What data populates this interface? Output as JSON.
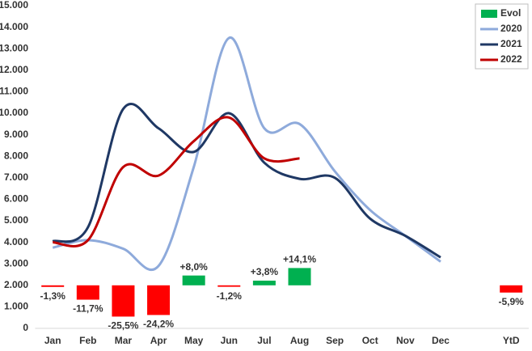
{
  "chart_data": {
    "type": "line",
    "categories": [
      "Jan",
      "Feb",
      "Mar",
      "Apr",
      "May",
      "Jun",
      "Jul",
      "Aug",
      "Sep",
      "Oct",
      "Nov",
      "Dec",
      null,
      "YtD"
    ],
    "ylim": [
      0,
      15000
    ],
    "yticks": [
      {
        "value": 0,
        "label": "0"
      },
      {
        "value": 1000,
        "label": "1.000"
      },
      {
        "value": 2000,
        "label": "2.000"
      },
      {
        "value": 3000,
        "label": "3.000"
      },
      {
        "value": 4000,
        "label": "4.000"
      },
      {
        "value": 5000,
        "label": "5.000"
      },
      {
        "value": 6000,
        "label": "6.000"
      },
      {
        "value": 7000,
        "label": "7.000"
      },
      {
        "value": 8000,
        "label": "8.000"
      },
      {
        "value": 9000,
        "label": "9.000"
      },
      {
        "value": 10000,
        "label": "10.000"
      },
      {
        "value": 11000,
        "label": "11.000"
      },
      {
        "value": 12000,
        "label": "12.000"
      },
      {
        "value": 13000,
        "label": "13.000"
      },
      {
        "value": 14000,
        "label": "14.000"
      },
      {
        "value": 15000,
        "label": "15.000"
      }
    ],
    "y2lim": [
      -35.1,
      228.1
    ],
    "legend": "upper right",
    "grid": false,
    "series": [
      {
        "name": "Evol",
        "type": "bar",
        "axis": "y2",
        "color": "#00b050",
        "negative_color": "#ff0000",
        "values": [
          -1.3,
          -11.7,
          -25.5,
          -24.2,
          8.0,
          -1.2,
          3.8,
          14.1,
          null,
          null,
          null,
          null,
          null,
          -5.9
        ],
        "value_labels": [
          "-1,3%",
          "-11,7%",
          "-25,5%",
          "-24,2%",
          "+8,0%",
          "-1,2%",
          "+3,8%",
          "+14,1%",
          null,
          null,
          null,
          null,
          null,
          "-5,9%"
        ]
      },
      {
        "name": "2020",
        "color": "#8eaadb",
        "values": [
          3750,
          4100,
          3700,
          2900,
          7500,
          13500,
          9300,
          9500,
          7300,
          5500,
          4300,
          3100,
          null,
          null
        ]
      },
      {
        "name": "2021",
        "color": "#1f3864",
        "values": [
          4050,
          4700,
          10200,
          9300,
          8200,
          10000,
          7700,
          6950,
          7000,
          5100,
          4300,
          3300,
          null,
          null
        ]
      },
      {
        "name": "2022",
        "color": "#c00000",
        "values": [
          4000,
          4100,
          7500,
          7100,
          8700,
          9800,
          7900,
          7900,
          null,
          null,
          null,
          null,
          null,
          null
        ]
      }
    ]
  }
}
